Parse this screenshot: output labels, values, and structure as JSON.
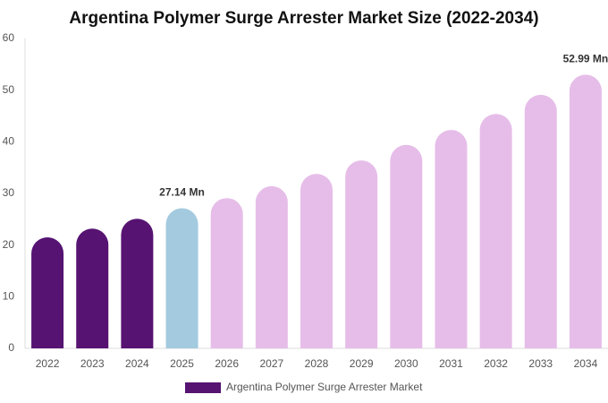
{
  "chart_data": {
    "type": "bar",
    "title": "Argentina Polymer Surge Arrester Market Size (2022-2034)",
    "categories": [
      "2022",
      "2023",
      "2024",
      "2025",
      "2026",
      "2027",
      "2028",
      "2029",
      "2030",
      "2031",
      "2032",
      "2033",
      "2034"
    ],
    "series": [
      {
        "name": "Argentina Polymer Surge Arrester Market",
        "color": "#561372",
        "values": [
          21.5,
          23.2,
          25.1,
          27.14,
          29.1,
          31.4,
          33.8,
          36.4,
          39.4,
          42.3,
          45.4,
          49.1,
          52.99
        ],
        "value_labels": [
          null,
          null,
          null,
          "27.14 Mn",
          null,
          null,
          null,
          null,
          null,
          null,
          null,
          null,
          "52.99 Mn"
        ],
        "colors": [
          "#561372",
          "#561372",
          "#561372",
          "#a3cadf",
          "#e6bde9",
          "#e6bde9",
          "#e6bde9",
          "#e6bde9",
          "#e6bde9",
          "#e6bde9",
          "#e6bde9",
          "#e6bde9",
          "#e6bde9"
        ]
      }
    ],
    "ylim": [
      0,
      60
    ],
    "yticks": [
      0,
      10,
      20,
      30,
      40,
      50,
      60
    ],
    "grid": false,
    "legend": "bottom"
  }
}
